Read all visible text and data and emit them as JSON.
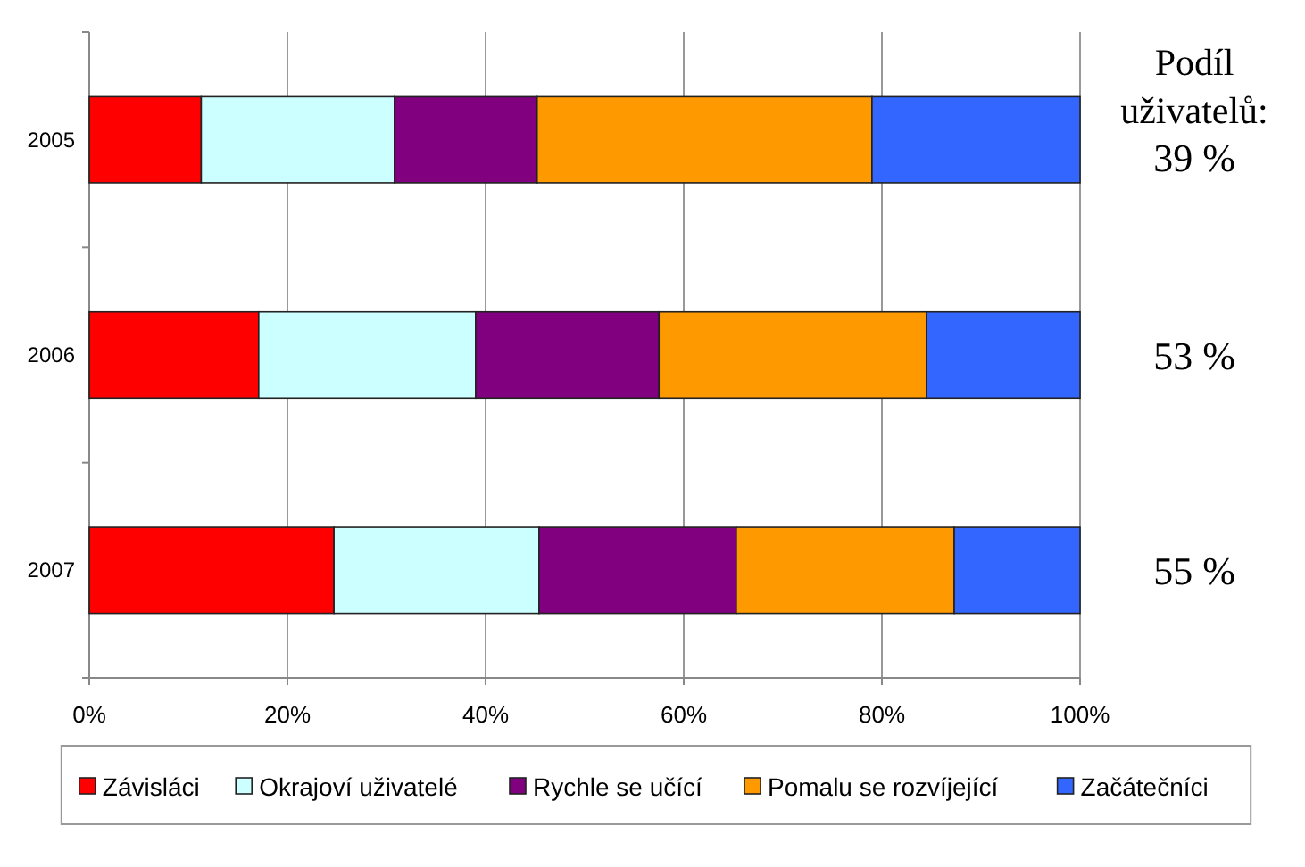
{
  "chart_data": {
    "type": "bar",
    "orientation": "horizontal",
    "stacked": true,
    "categories": [
      "2005",
      "2006",
      "2007"
    ],
    "series": [
      {
        "name": "Závisláci",
        "color": "#ff0000",
        "values": [
          11.3,
          17.1,
          24.7
        ]
      },
      {
        "name": "Okrajoví uživatelé",
        "color": "#ccffff",
        "values": [
          19.5,
          21.9,
          20.7
        ]
      },
      {
        "name": "Rychle se učící",
        "color": "#800080",
        "values": [
          14.4,
          18.5,
          19.9
        ]
      },
      {
        "name": "Pomalu se rozvíjející",
        "color": "#ff9900",
        "values": [
          33.8,
          27.0,
          22.0
        ]
      },
      {
        "name": "Začátečníci",
        "color": "#3366ff",
        "values": [
          21.0,
          15.5,
          12.7
        ]
      }
    ],
    "xlim": [
      0,
      100
    ],
    "xticks": [
      {
        "value": 0,
        "label": "0%"
      },
      {
        "value": 20,
        "label": "20%"
      },
      {
        "value": 40,
        "label": "40%"
      },
      {
        "value": 60,
        "label": "60%"
      },
      {
        "value": 80,
        "label": "80%"
      },
      {
        "value": 100,
        "label": "100%"
      }
    ],
    "grid": "x",
    "legend": "bottom",
    "annotations": [
      "Podíl uživatelů:",
      "39 %",
      "53 %",
      "55 %"
    ]
  }
}
